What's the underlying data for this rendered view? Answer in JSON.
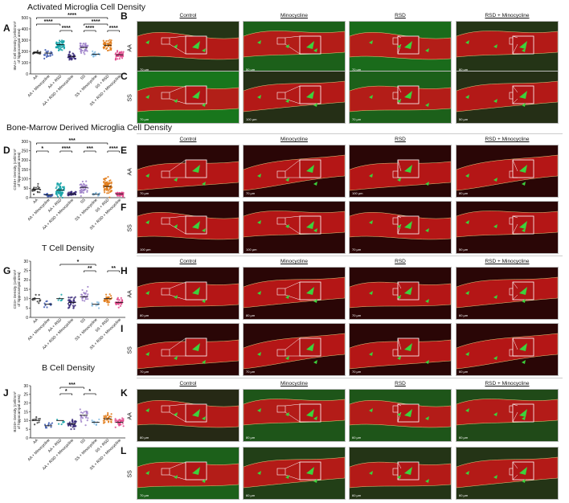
{
  "sections": [
    {
      "id": "A",
      "title": "Activated Microglia Cell Density",
      "ylabel_l1": "IBA1+ Cell Density (cells/mm²",
      "ylabel_l2": "of hippocampal area)",
      "yticks": [
        "0",
        "100",
        "200",
        "300",
        "400",
        "500"
      ],
      "sig": [
        "****",
        "****",
        "****",
        "****",
        "****",
        "****"
      ]
    },
    {
      "id": "D",
      "title": "Bone-Marrow Derived Microglia Cell Density",
      "ylabel_l1": "CD45+ Density (cell/mm²",
      "ylabel_l2": "of hippocampal area)",
      "yticks": [
        "0",
        "50",
        "100",
        "150",
        "200",
        "250",
        "300"
      ],
      "sig": [
        "***",
        "*",
        "****",
        "***",
        "****"
      ]
    },
    {
      "id": "G",
      "title": "T Cell Density",
      "ylabel_l1": "CD3+ Density (cell/mm²",
      "ylabel_l2": "of hippocampal area)",
      "yticks": [
        "0",
        "5",
        "10",
        "15",
        "20",
        "25",
        "30"
      ],
      "sig": [
        "*",
        "**",
        "**"
      ]
    },
    {
      "id": "J",
      "title": "B Cell Density",
      "ylabel_l1": "B220+ Density (cell/mm²",
      "ylabel_l2": "of hippocampal area)",
      "yticks": [
        "0",
        "5",
        "10",
        "15",
        "20",
        "25",
        "30"
      ],
      "sig": [
        "***",
        "*",
        "*"
      ]
    }
  ],
  "groups": [
    "AA",
    "AA + Minocycline",
    "AA + RSD",
    "AA + RSD + Minocycline",
    "SS",
    "SS + Minocycline",
    "SS + RSD",
    "SS + RSD + Minocycline"
  ],
  "columns": [
    "Control",
    "Minocycline",
    "RSD",
    "RSD + Minocycline"
  ],
  "image_rows": [
    {
      "panel": "B",
      "row": "AA",
      "scales": [
        "70 µm",
        "50 µm",
        "70 µm",
        "80 µm"
      ],
      "green": [
        0.2,
        0.6,
        0.7,
        0.2
      ]
    },
    {
      "panel": "C",
      "row": "SS",
      "scales": [
        "70 µm",
        "100 µm",
        "70 µm",
        "50 µm"
      ],
      "green": [
        0.8,
        0.15,
        0.6,
        0.15
      ]
    },
    {
      "panel": "E",
      "row": "AA",
      "scales": [
        "70 µm",
        "70 µm",
        "100 µm",
        "80 µm"
      ],
      "green": [
        0,
        0,
        0,
        0
      ]
    },
    {
      "panel": "F",
      "row": "SS",
      "scales": [
        "100 µm",
        "100 µm",
        "70 µm",
        "50 µm"
      ],
      "green": [
        0,
        0,
        0,
        0
      ]
    },
    {
      "panel": "H",
      "row": "AA",
      "scales": [
        "80 µm",
        "80 µm",
        "70 µm",
        "60 µm"
      ],
      "green": [
        0,
        0,
        0,
        0
      ]
    },
    {
      "panel": "I",
      "row": "SS",
      "scales": [
        "70 µm",
        "70 µm",
        "70 µm",
        "60 µm"
      ],
      "green": [
        0,
        0,
        0,
        0
      ]
    },
    {
      "panel": "K",
      "row": "AA",
      "scales": [
        "80 µm",
        "80 µm",
        "60 µm",
        "60 µm"
      ],
      "green": [
        0.1,
        0.5,
        0.5,
        0.4
      ]
    },
    {
      "panel": "L",
      "row": "SS",
      "scales": [
        "70 µm",
        "60 µm",
        "60 µm",
        "60 µm"
      ],
      "green": [
        0.6,
        0.3,
        0.2,
        0.2
      ]
    }
  ],
  "colors": {
    "AA": "#3a3a3a",
    "AA + Minocycline": "#3b58b0",
    "AA + RSD": "#16a3a8",
    "AA + RSD + Minocycline": "#3a2a7a",
    "SS": "#9b7ec8",
    "SS + Minocycline": "#7fb8e0",
    "SS + RSD": "#e07a18",
    "SS + RSD + Minocycline": "#e0458a",
    "tissue": "#c01818",
    "background_dark": "#2a0606",
    "green_bg": "#2f8a2f",
    "marker": "#3cd23c"
  }
}
